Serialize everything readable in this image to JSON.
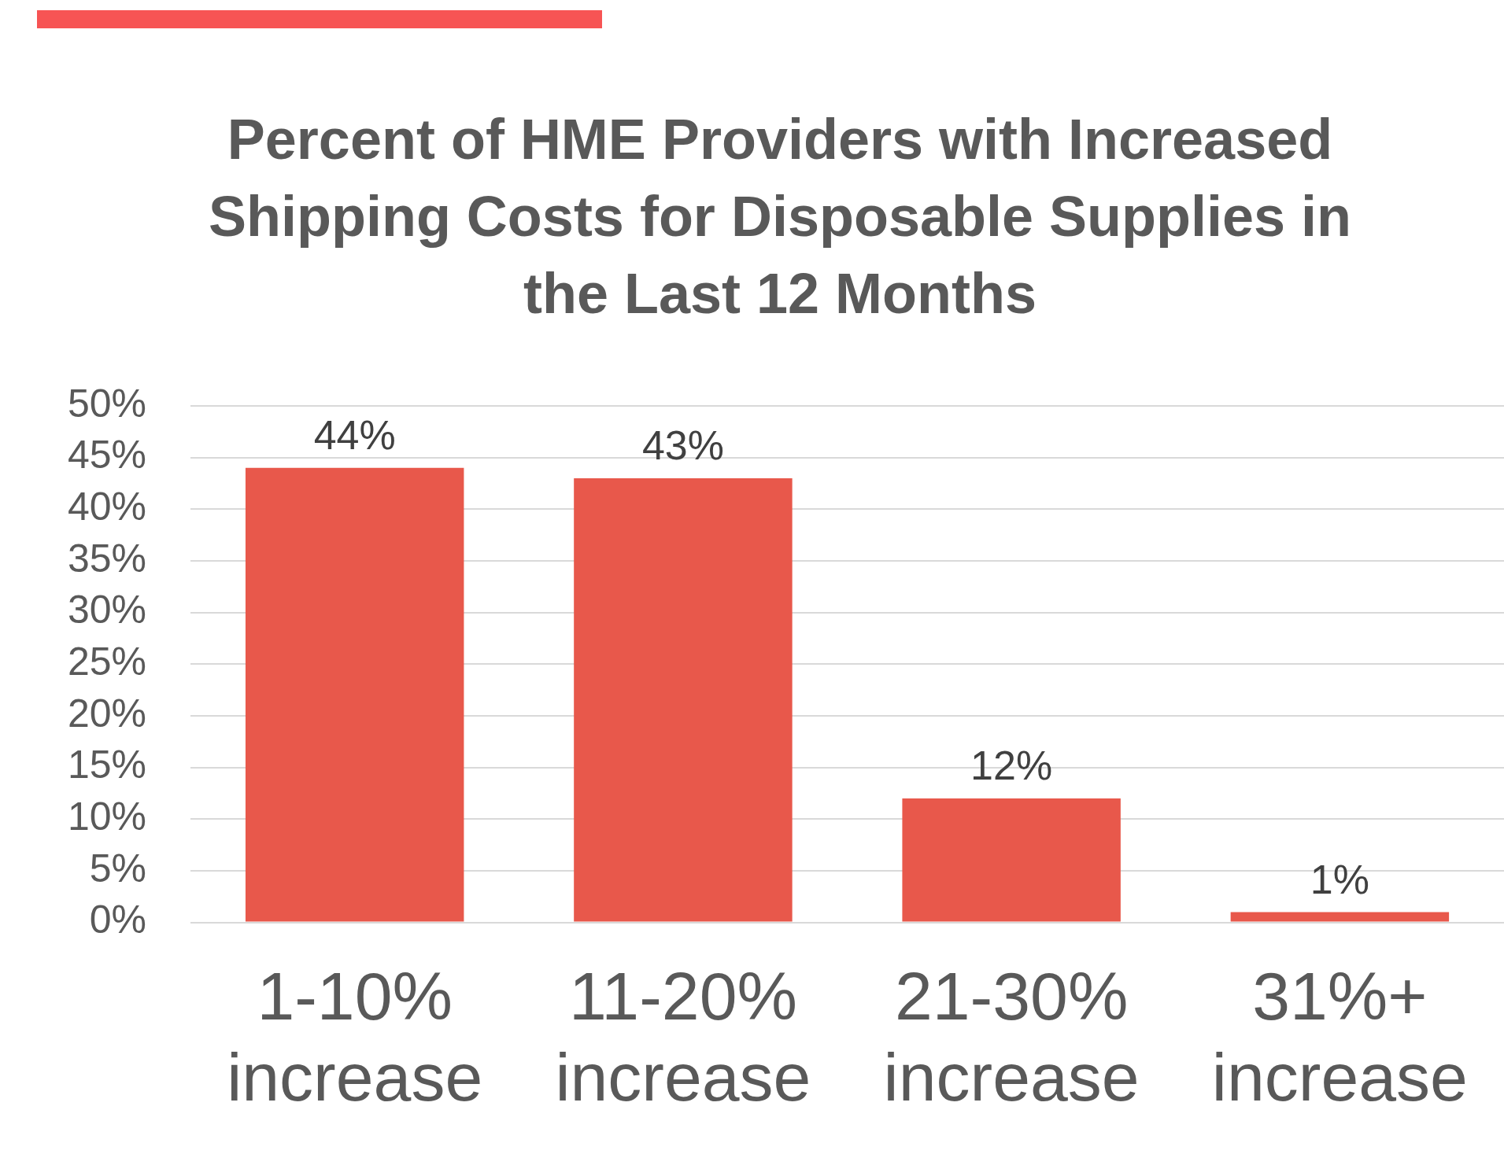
{
  "chart_data": {
    "type": "bar",
    "title": "Percent of HME Providers with Increased Shipping Costs for Disposable Supplies in the Last 12 Months",
    "categories": [
      "1-10% increase",
      "11-20% increase",
      "21-30% increase",
      "31%+ increase"
    ],
    "values": [
      44,
      43,
      12,
      1
    ],
    "color": "#e8584b",
    "ylim": [
      0,
      50
    ],
    "yticks": [
      {
        "value": 0,
        "label": "0%"
      },
      {
        "value": 5,
        "label": "5%"
      },
      {
        "value": 10,
        "label": "10%"
      },
      {
        "value": 15,
        "label": "15%"
      },
      {
        "value": 20,
        "label": "20%"
      },
      {
        "value": 25,
        "label": "25%"
      },
      {
        "value": 30,
        "label": "30%"
      },
      {
        "value": 35,
        "label": "35%"
      },
      {
        "value": 40,
        "label": "40%"
      },
      {
        "value": 45,
        "label": "45%"
      },
      {
        "value": 50,
        "label": "50%"
      }
    ],
    "value_labels": [
      "44%",
      "43%",
      "12%",
      "1%"
    ],
    "grid": "y"
  }
}
